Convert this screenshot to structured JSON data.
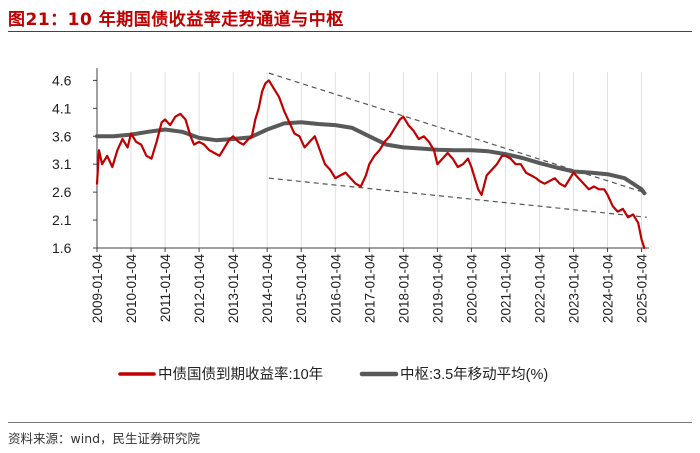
{
  "header": {
    "title": "图21：10 年期国债收益率走势通道与中枢"
  },
  "footer": {
    "source": "资料来源：wind，民生证券研究院"
  },
  "chart_data": {
    "type": "line",
    "title": "图21：10 年期国债收益率走势通道与中枢",
    "xlabel": "",
    "ylabel": "",
    "ylim": [
      1.6,
      4.75
    ],
    "xlim": [
      2009.0,
      2025.1
    ],
    "yticks": [
      1.6,
      2.1,
      2.6,
      3.1,
      3.6,
      4.1,
      4.6
    ],
    "ytick_labels": [
      "1.6",
      "2.1",
      "2.6",
      "3.1",
      "3.6",
      "4.1",
      "4.6"
    ],
    "xticks": [
      2009,
      2010,
      2011,
      2012,
      2013,
      2014,
      2015,
      2016,
      2017,
      2018,
      2019,
      2020,
      2021,
      2022,
      2023,
      2024,
      2025
    ],
    "xtick_labels": [
      "2009-01-04",
      "2010-01-04",
      "2011-01-04",
      "2012-01-04",
      "2013-01-04",
      "2014-01-04",
      "2015-01-04",
      "2016-01-04",
      "2017-01-04",
      "2018-01-04",
      "2019-01-04",
      "2020-01-04",
      "2021-01-04",
      "2022-01-04",
      "2023-01-04",
      "2024-01-04",
      "2025-01-04"
    ],
    "grid": "vertical",
    "legend_position": "bottom",
    "series": [
      {
        "name": "中债国债到期收益率:10年",
        "color": "#c00000",
        "x": [
          2009.0,
          2009.06,
          2009.15,
          2009.3,
          2009.45,
          2009.6,
          2009.75,
          2009.9,
          2010.0,
          2010.15,
          2010.3,
          2010.45,
          2010.6,
          2010.75,
          2010.9,
          2011.0,
          2011.15,
          2011.3,
          2011.45,
          2011.6,
          2011.75,
          2011.85,
          2012.0,
          2012.15,
          2012.3,
          2012.45,
          2012.6,
          2012.75,
          2012.9,
          2013.0,
          2013.15,
          2013.3,
          2013.45,
          2013.55,
          2013.65,
          2013.75,
          2013.85,
          2013.95,
          2014.05,
          2014.2,
          2014.35,
          2014.5,
          2014.65,
          2014.8,
          2014.95,
          2015.1,
          2015.25,
          2015.4,
          2015.55,
          2015.7,
          2015.85,
          2016.0,
          2016.15,
          2016.3,
          2016.45,
          2016.6,
          2016.75,
          2016.9,
          2017.0,
          2017.15,
          2017.3,
          2017.45,
          2017.6,
          2017.75,
          2017.9,
          2018.0,
          2018.15,
          2018.3,
          2018.45,
          2018.6,
          2018.75,
          2018.9,
          2019.0,
          2019.15,
          2019.3,
          2019.45,
          2019.6,
          2019.75,
          2019.9,
          2020.0,
          2020.1,
          2020.2,
          2020.3,
          2020.45,
          2020.6,
          2020.75,
          2020.9,
          2021.0,
          2021.15,
          2021.3,
          2021.45,
          2021.6,
          2021.75,
          2021.9,
          2022.0,
          2022.15,
          2022.3,
          2022.45,
          2022.6,
          2022.75,
          2022.9,
          2023.0,
          2023.15,
          2023.3,
          2023.45,
          2023.6,
          2023.75,
          2023.9,
          2024.0,
          2024.15,
          2024.3,
          2024.45,
          2024.6,
          2024.75,
          2024.9,
          2025.0,
          2025.08
        ],
        "values": [
          2.75,
          3.35,
          3.1,
          3.25,
          3.05,
          3.35,
          3.55,
          3.4,
          3.65,
          3.5,
          3.45,
          3.25,
          3.2,
          3.5,
          3.85,
          3.9,
          3.8,
          3.95,
          4.0,
          3.9,
          3.6,
          3.45,
          3.5,
          3.45,
          3.35,
          3.3,
          3.25,
          3.4,
          3.55,
          3.6,
          3.5,
          3.45,
          3.55,
          3.6,
          3.9,
          4.1,
          4.4,
          4.55,
          4.6,
          4.45,
          4.3,
          4.05,
          3.85,
          3.65,
          3.6,
          3.4,
          3.5,
          3.6,
          3.35,
          3.1,
          3.0,
          2.85,
          2.9,
          2.95,
          2.85,
          2.75,
          2.7,
          2.9,
          3.1,
          3.25,
          3.35,
          3.5,
          3.6,
          3.75,
          3.9,
          3.95,
          3.8,
          3.7,
          3.55,
          3.6,
          3.5,
          3.35,
          3.1,
          3.2,
          3.3,
          3.2,
          3.05,
          3.1,
          3.2,
          3.05,
          2.85,
          2.65,
          2.55,
          2.9,
          3.0,
          3.1,
          3.25,
          3.25,
          3.2,
          3.1,
          3.1,
          2.95,
          2.9,
          2.85,
          2.8,
          2.75,
          2.8,
          2.85,
          2.75,
          2.7,
          2.85,
          2.95,
          2.85,
          2.75,
          2.65,
          2.7,
          2.65,
          2.65,
          2.55,
          2.35,
          2.25,
          2.3,
          2.15,
          2.2,
          2.05,
          1.75,
          1.6
        ]
      },
      {
        "name": "中枢:3.5年移动平均(%)",
        "color": "#595959",
        "x": [
          2009.0,
          2009.5,
          2010.0,
          2010.5,
          2011.0,
          2011.5,
          2012.0,
          2012.5,
          2013.0,
          2013.5,
          2014.0,
          2014.5,
          2015.0,
          2015.5,
          2016.0,
          2016.5,
          2017.0,
          2017.5,
          2018.0,
          2018.5,
          2019.0,
          2019.5,
          2020.0,
          2020.5,
          2021.0,
          2021.5,
          2022.0,
          2022.5,
          2023.0,
          2023.5,
          2024.0,
          2024.5,
          2025.0,
          2025.08
        ],
        "values": [
          3.6,
          3.6,
          3.63,
          3.68,
          3.72,
          3.68,
          3.57,
          3.53,
          3.55,
          3.58,
          3.72,
          3.83,
          3.85,
          3.82,
          3.8,
          3.75,
          3.6,
          3.45,
          3.4,
          3.38,
          3.36,
          3.35,
          3.35,
          3.33,
          3.28,
          3.21,
          3.12,
          3.04,
          2.97,
          2.95,
          2.92,
          2.85,
          2.65,
          2.58
        ]
      }
    ],
    "annotations": [
      {
        "type": "trendline",
        "style": "dashed",
        "from": [
          2014.05,
          4.73
        ],
        "to": [
          2025.15,
          2.58
        ]
      },
      {
        "type": "trendline",
        "style": "dashed",
        "from": [
          2014.05,
          2.85
        ],
        "to": [
          2025.15,
          2.15
        ]
      }
    ]
  }
}
